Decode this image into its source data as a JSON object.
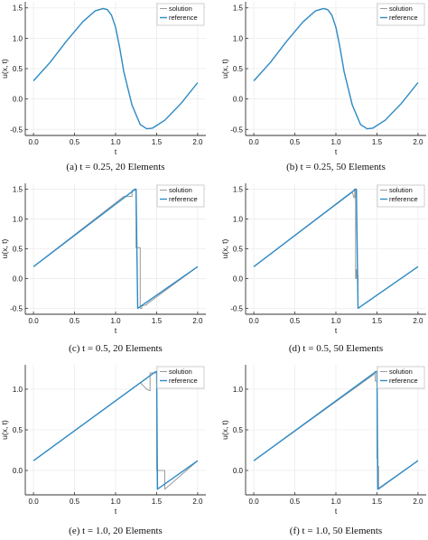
{
  "chart_data": [
    {
      "type": "line",
      "caption": "(a) t = 0.25, 20 Elements",
      "xlabel": "t",
      "ylabel": "u(x, t)",
      "xlim": [
        -0.1,
        2.1
      ],
      "ylim": [
        -0.6,
        1.6
      ],
      "xticks": [
        "0.0",
        "0.5",
        "1.0",
        "1.5",
        "2.0"
      ],
      "yticks": [
        "-0.5",
        "0.0",
        "0.5",
        "1.0",
        "1.5"
      ],
      "legend": [
        "solution",
        "reference"
      ],
      "legend_position": "top-right",
      "series": [
        {
          "name": "solution",
          "x": [
            0.0,
            0.2,
            0.4,
            0.6,
            0.75,
            0.85,
            0.9,
            0.95,
            1.0,
            1.05,
            1.1,
            1.2,
            1.3,
            1.38,
            1.45,
            1.6,
            1.8,
            2.0
          ],
          "y": [
            0.3,
            0.6,
            0.95,
            1.27,
            1.45,
            1.49,
            1.47,
            1.38,
            1.18,
            0.85,
            0.45,
            -0.1,
            -0.42,
            -0.49,
            -0.48,
            -0.35,
            -0.07,
            0.27
          ]
        },
        {
          "name": "reference",
          "x": [
            0.0,
            0.2,
            0.4,
            0.6,
            0.75,
            0.85,
            0.9,
            0.95,
            1.0,
            1.05,
            1.1,
            1.2,
            1.3,
            1.38,
            1.45,
            1.6,
            1.8,
            2.0
          ],
          "y": [
            0.3,
            0.6,
            0.95,
            1.27,
            1.45,
            1.49,
            1.47,
            1.38,
            1.18,
            0.85,
            0.45,
            -0.1,
            -0.42,
            -0.49,
            -0.48,
            -0.35,
            -0.07,
            0.27
          ]
        }
      ]
    },
    {
      "type": "line",
      "caption": "(b) t = 0.25, 50 Elements",
      "xlabel": "t",
      "ylabel": "u(x, t)",
      "xlim": [
        -0.1,
        2.1
      ],
      "ylim": [
        -0.6,
        1.6
      ],
      "xticks": [
        "0.0",
        "0.5",
        "1.0",
        "1.5",
        "2.0"
      ],
      "yticks": [
        "-0.5",
        "0.0",
        "0.5",
        "1.0",
        "1.5"
      ],
      "legend": [
        "solution",
        "reference"
      ],
      "legend_position": "top-right",
      "series": [
        {
          "name": "solution",
          "x": [
            0.0,
            0.2,
            0.4,
            0.6,
            0.75,
            0.85,
            0.9,
            0.95,
            1.0,
            1.05,
            1.1,
            1.2,
            1.3,
            1.38,
            1.45,
            1.6,
            1.8,
            2.0
          ],
          "y": [
            0.3,
            0.6,
            0.95,
            1.27,
            1.45,
            1.49,
            1.47,
            1.38,
            1.18,
            0.85,
            0.45,
            -0.1,
            -0.42,
            -0.49,
            -0.48,
            -0.35,
            -0.07,
            0.27
          ]
        },
        {
          "name": "reference",
          "x": [
            0.0,
            0.2,
            0.4,
            0.6,
            0.75,
            0.85,
            0.9,
            0.95,
            1.0,
            1.05,
            1.1,
            1.2,
            1.3,
            1.38,
            1.45,
            1.6,
            1.8,
            2.0
          ],
          "y": [
            0.3,
            0.6,
            0.95,
            1.27,
            1.45,
            1.49,
            1.47,
            1.38,
            1.18,
            0.85,
            0.45,
            -0.1,
            -0.42,
            -0.49,
            -0.48,
            -0.35,
            -0.07,
            0.27
          ]
        }
      ]
    },
    {
      "type": "line",
      "caption": "(c) t = 0.5, 20 Elements",
      "xlabel": "t",
      "ylabel": "u(x, t)",
      "xlim": [
        -0.1,
        2.1
      ],
      "ylim": [
        -0.6,
        1.6
      ],
      "xticks": [
        "0.0",
        "0.5",
        "1.0",
        "1.5",
        "2.0"
      ],
      "yticks": [
        "-0.5",
        "0.0",
        "0.5",
        "1.0",
        "1.5"
      ],
      "legend": [
        "solution",
        "reference"
      ],
      "legend_position": "top-right",
      "series": [
        {
          "name": "solution",
          "x": [
            0.0,
            1.1,
            1.1,
            1.2,
            1.2,
            1.25,
            1.25,
            1.3,
            1.3,
            1.32,
            1.32,
            1.38,
            1.38,
            2.0
          ],
          "y": [
            0.2,
            1.38,
            1.38,
            1.38,
            1.48,
            1.48,
            0.52,
            0.52,
            -0.5,
            -0.5,
            -0.46,
            -0.44,
            -0.43,
            0.2
          ]
        },
        {
          "name": "reference",
          "x": [
            0.0,
            1.22,
            1.23,
            1.25,
            1.27,
            2.0
          ],
          "y": [
            0.2,
            1.48,
            1.5,
            1.5,
            -0.5,
            0.2
          ]
        }
      ]
    },
    {
      "type": "line",
      "caption": "(d) t = 0.5, 50 Elements",
      "xlabel": "t",
      "ylabel": "u(x, t)",
      "xlim": [
        -0.1,
        2.1
      ],
      "ylim": [
        -0.6,
        1.6
      ],
      "xticks": [
        "0.0",
        "0.5",
        "1.0",
        "1.5",
        "2.0"
      ],
      "yticks": [
        "-0.5",
        "0.0",
        "0.5",
        "1.0",
        "1.5"
      ],
      "legend": [
        "solution",
        "reference"
      ],
      "legend_position": "top-right",
      "series": [
        {
          "name": "solution",
          "x": [
            0.0,
            1.2,
            1.22,
            1.23,
            1.23,
            1.24,
            1.24,
            1.25,
            1.25,
            1.26,
            1.26,
            1.27,
            1.27,
            2.0
          ],
          "y": [
            0.2,
            1.45,
            1.36,
            1.36,
            1.5,
            1.5,
            0.0,
            0.0,
            0.15,
            0.15,
            0.05,
            0.05,
            -0.5,
            0.2
          ]
        },
        {
          "name": "reference",
          "x": [
            0.0,
            1.22,
            1.23,
            1.25,
            1.27,
            2.0
          ],
          "y": [
            0.2,
            1.48,
            1.5,
            1.5,
            -0.5,
            0.2
          ]
        }
      ]
    },
    {
      "type": "line",
      "caption": "(e) t = 1.0, 20 Elements",
      "xlabel": "t",
      "ylabel": "u(x, t)",
      "xlim": [
        -0.1,
        2.1
      ],
      "ylim": [
        -0.3,
        1.3
      ],
      "xticks": [
        "0.0",
        "0.5",
        "1.0",
        "1.5",
        "2.0"
      ],
      "yticks": [
        "0.0",
        "0.5",
        "1.0"
      ],
      "legend": [
        "solution",
        "reference"
      ],
      "legend_position": "top-right",
      "series": [
        {
          "name": "solution",
          "x": [
            0.0,
            1.3,
            1.38,
            1.42,
            1.42,
            1.5,
            1.5,
            1.5,
            1.5,
            1.6,
            1.6,
            2.0
          ],
          "y": [
            0.12,
            1.08,
            1.0,
            0.98,
            1.2,
            1.2,
            1.2,
            0.0,
            0.0,
            0.0,
            -0.23,
            0.12
          ]
        },
        {
          "name": "reference",
          "x": [
            0.0,
            1.48,
            1.5,
            1.51,
            2.0
          ],
          "y": [
            0.12,
            1.21,
            1.22,
            -0.23,
            0.12
          ]
        }
      ]
    },
    {
      "type": "line",
      "caption": "(f) t = 1.0, 50 Elements",
      "xlabel": "t",
      "ylabel": "u(x, t)",
      "xlim": [
        -0.1,
        2.1
      ],
      "ylim": [
        -0.3,
        1.3
      ],
      "xticks": [
        "0.0",
        "0.5",
        "1.0",
        "1.5",
        "2.0"
      ],
      "yticks": [
        "0.0",
        "0.5",
        "1.0"
      ],
      "legend": [
        "solution",
        "reference"
      ],
      "legend_position": "top-right",
      "series": [
        {
          "name": "solution",
          "x": [
            0.0,
            1.46,
            1.48,
            1.48,
            1.5,
            1.5,
            1.51,
            1.51,
            1.52,
            1.52,
            2.0
          ],
          "y": [
            0.12,
            1.18,
            1.22,
            1.1,
            1.1,
            0.15,
            0.15,
            0.05,
            0.05,
            -0.23,
            0.12
          ]
        },
        {
          "name": "reference",
          "x": [
            0.0,
            1.48,
            1.5,
            1.51,
            2.0
          ],
          "y": [
            0.12,
            1.21,
            1.22,
            -0.23,
            0.12
          ]
        }
      ]
    }
  ],
  "colors": {
    "solution": "#9a9a9a",
    "reference": "#2e8bc6",
    "grid": "#ececec",
    "axis": "#333333"
  }
}
